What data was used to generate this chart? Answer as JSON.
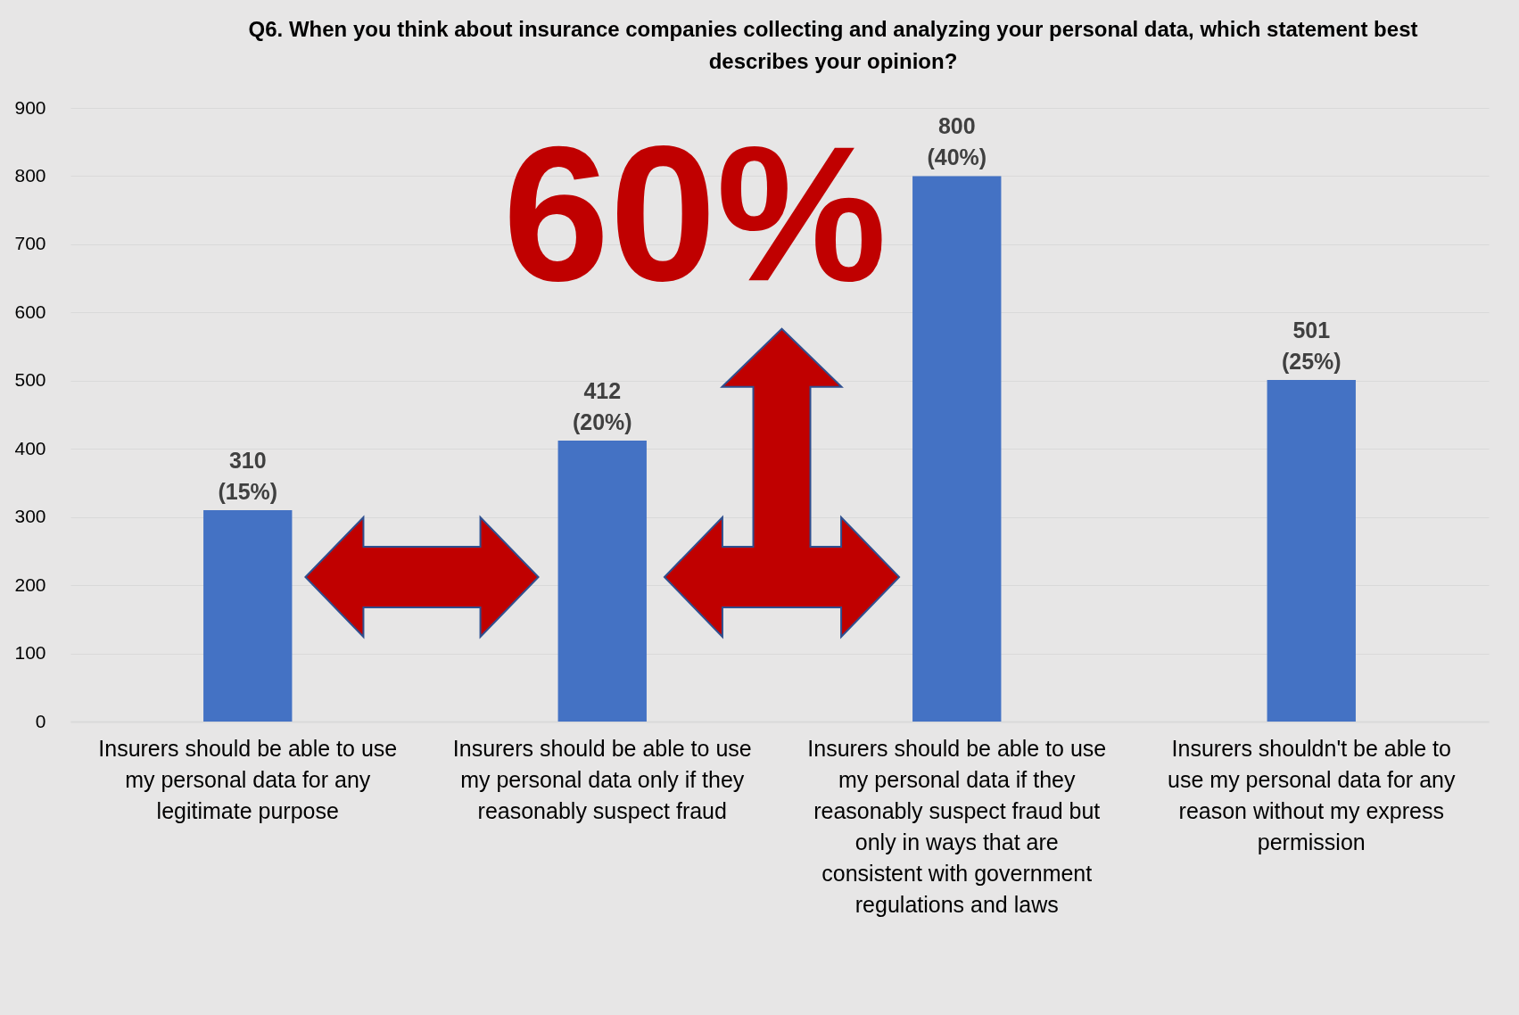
{
  "chart_data": {
    "type": "bar",
    "title": "Q6. When you think about insurance companies collecting and analyzing your personal data, which statement best describes your opinion?",
    "categories": [
      "Insurers should be able to use my personal data for any legitimate purpose",
      "Insurers should be able to use my personal data only if they reasonably suspect fraud",
      "Insurers should be able to use my personal data if they reasonably suspect fraud but only in ways that are consistent with government regulations and laws",
      "Insurers shouldn't be able to use my personal data for any reason without my express permission"
    ],
    "values": [
      310,
      412,
      800,
      501
    ],
    "value_labels": [
      "310 (15%)",
      "412 (20%)",
      "800 (40%)",
      "501 (25%)"
    ],
    "color": "#4472c4",
    "ylim": [
      0,
      900
    ],
    "yticks": [
      0,
      100,
      200,
      300,
      400,
      500,
      600,
      700,
      800,
      900
    ],
    "grid": "y",
    "annotations": [
      "60%"
    ]
  }
}
